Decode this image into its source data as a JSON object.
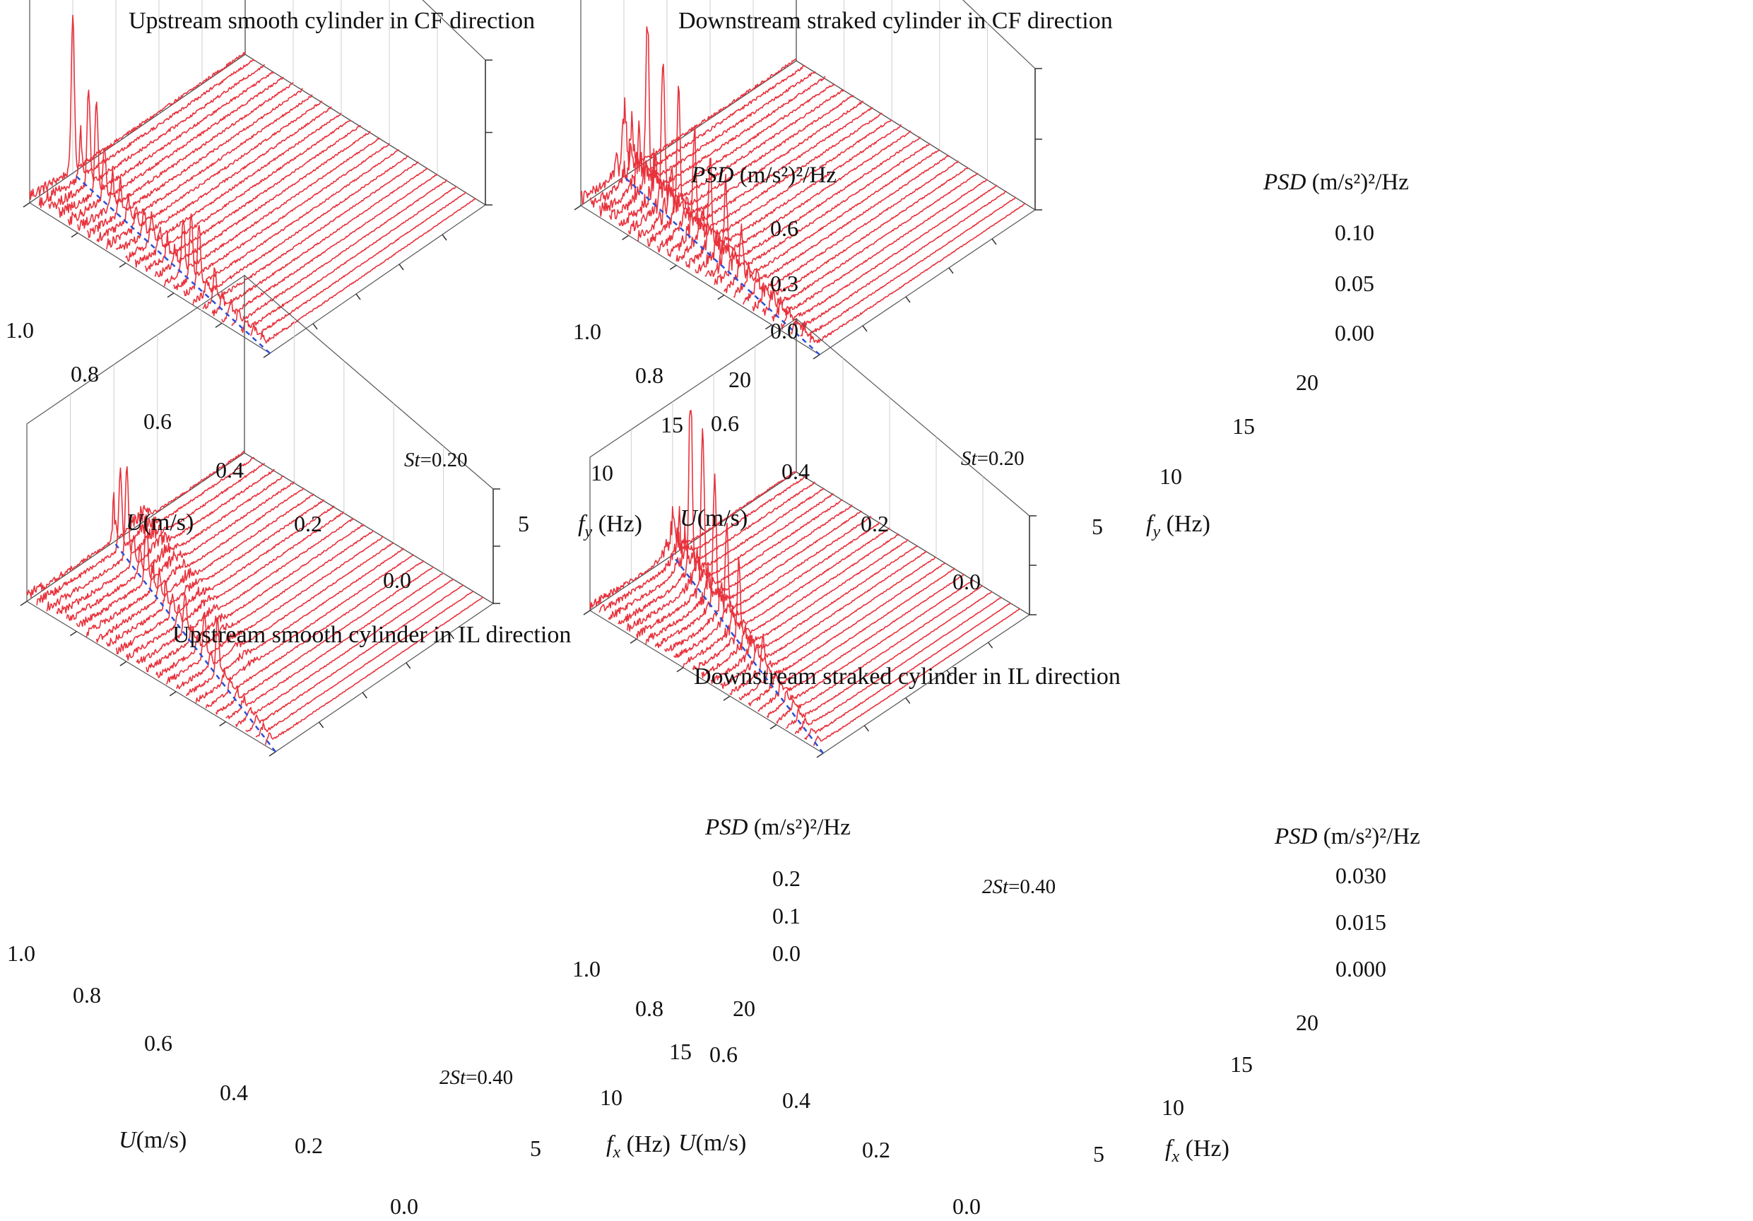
{
  "figure": {
    "panels": [
      {
        "title": "Upstream smooth cylinder in CF direction",
        "u_axis": {
          "label_var": "U",
          "label_unit": "(m/s)",
          "ticks": [
            "0.0",
            "0.2",
            "0.4",
            "0.6",
            "0.8",
            "1.0"
          ]
        },
        "f_axis": {
          "label_var": "f",
          "label_sub": "y",
          "label_unit": " (Hz)",
          "ticks": [
            "5",
            "10",
            "15",
            "20"
          ]
        },
        "z_axis": {
          "label_var": "PSD",
          "label_unit": " (m/s²)²/Hz",
          "ticks": [
            "0.0",
            "0.3",
            "0.6"
          ]
        },
        "annotation": {
          "var": "St",
          "text": "=0.20"
        }
      },
      {
        "title": "Downstream straked cylinder in CF direction",
        "u_axis": {
          "label_var": "U",
          "label_unit": "(m/s)",
          "ticks": [
            "0.0",
            "0.2",
            "0.4",
            "0.6",
            "0.8",
            "1.0"
          ]
        },
        "f_axis": {
          "label_var": "f",
          "label_sub": "y",
          "label_unit": " (Hz)",
          "ticks": [
            "5",
            "10",
            "15",
            "20"
          ]
        },
        "z_axis": {
          "label_var": "PSD",
          "label_unit": " (m/s²)²/Hz",
          "ticks": [
            "0.00",
            "0.05",
            "0.10"
          ]
        },
        "annotation": {
          "var": "St",
          "text": "=0.20"
        }
      },
      {
        "title": "Upstream smooth cylinder in IL direction",
        "u_axis": {
          "label_var": "U",
          "label_unit": "(m/s)",
          "ticks": [
            "0.0",
            "0.2",
            "0.4",
            "0.6",
            "0.8",
            "1.0"
          ]
        },
        "f_axis": {
          "label_var": "f",
          "label_sub": "x",
          "label_unit": " (Hz)",
          "ticks": [
            "5",
            "10",
            "15",
            "20"
          ]
        },
        "z_axis": {
          "label_var": "PSD",
          "label_unit": " (m/s²)²/Hz",
          "ticks": [
            "0.0",
            "0.1",
            "0.2"
          ]
        },
        "annotation": {
          "var": "2St",
          "text": "=0.40"
        }
      },
      {
        "title": "Downstream straked cylinder in IL direction",
        "u_axis": {
          "label_var": "U",
          "label_unit": "(m/s)",
          "ticks": [
            "0.0",
            "0.2",
            "0.4",
            "0.6",
            "0.8",
            "1.0"
          ]
        },
        "f_axis": {
          "label_var": "f",
          "label_sub": "x",
          "label_unit": " (Hz)",
          "ticks": [
            "5",
            "10",
            "15",
            "20"
          ]
        },
        "z_axis": {
          "label_var": "PSD",
          "label_unit": " (m/s²)²/Hz",
          "ticks": [
            "0.000",
            "0.015",
            "0.030"
          ]
        },
        "annotation": {
          "var": "2St",
          "text": "=0.40"
        }
      }
    ]
  },
  "chart_data": [
    {
      "type": "waterfall",
      "title": "Upstream smooth cylinder in CF direction",
      "xlabel": "fy (Hz)",
      "ylabel": "U(m/s)",
      "zlabel": "PSD (m/s²)²/Hz",
      "f_range": [
        0,
        25
      ],
      "u_range": [
        0,
        1.0
      ],
      "psd_range": [
        0,
        0.6
      ],
      "u_values": [
        0.04,
        0.08,
        0.12,
        0.16,
        0.2,
        0.24,
        0.28,
        0.32,
        0.36,
        0.4,
        0.44,
        0.48,
        0.52,
        0.56,
        0.6,
        0.64,
        0.68,
        0.72,
        0.76,
        0.8,
        0.84,
        0.88,
        0.92,
        0.96,
        1.0
      ],
      "peak_relation": {
        "name": "St=0.20",
        "slope_hz_per_ms": 5.0
      },
      "dominant_peaks": [
        {
          "u": 0.28,
          "f": 1.4,
          "psd": 0.13
        },
        {
          "u": 0.36,
          "f": 1.8,
          "psd": 0.26
        },
        {
          "u": 0.4,
          "f": 2.0,
          "psd": 0.28
        },
        {
          "u": 0.44,
          "f": 2.2,
          "psd": 0.22
        },
        {
          "u": 0.6,
          "f": 3.0,
          "psd": 0.12
        },
        {
          "u": 0.84,
          "f": 4.2,
          "psd": 0.22
        },
        {
          "u": 0.88,
          "f": 4.4,
          "psd": 0.38
        },
        {
          "u": 0.92,
          "f": 4.6,
          "psd": 0.4
        },
        {
          "u": 1.0,
          "f": 5.0,
          "psd": 0.65
        }
      ],
      "grid": true,
      "color": "#e8323c"
    },
    {
      "type": "waterfall",
      "title": "Downstream straked cylinder in CF direction",
      "xlabel": "fy (Hz)",
      "ylabel": "U(m/s)",
      "zlabel": "PSD (m/s²)²/Hz",
      "f_range": [
        0,
        25
      ],
      "u_range": [
        0,
        1.0
      ],
      "psd_range": [
        0,
        0.1
      ],
      "u_values": [
        0.04,
        0.08,
        0.12,
        0.16,
        0.2,
        0.24,
        0.28,
        0.32,
        0.36,
        0.4,
        0.44,
        0.48,
        0.52,
        0.56,
        0.6,
        0.64,
        0.68,
        0.72,
        0.76,
        0.8,
        0.84,
        0.88,
        0.92,
        0.96,
        1.0
      ],
      "peak_relation": {
        "name": "St=0.20",
        "slope_hz_per_ms": 5.0
      },
      "dominant_peaks": [
        {
          "u": 0.4,
          "f": 2.0,
          "psd": 0.03
        },
        {
          "u": 0.48,
          "f": 2.4,
          "psd": 0.055
        },
        {
          "u": 0.56,
          "f": 2.8,
          "psd": 0.06
        },
        {
          "u": 0.64,
          "f": 3.2,
          "psd": 0.07
        },
        {
          "u": 0.72,
          "f": 3.6,
          "psd": 0.09
        },
        {
          "u": 0.8,
          "f": 4.0,
          "psd": 0.095
        },
        {
          "u": 0.88,
          "f": 4.4,
          "psd": 0.115
        }
      ],
      "grid": true,
      "color": "#e8323c"
    },
    {
      "type": "waterfall",
      "title": "Upstream smooth cylinder in IL direction",
      "xlabel": "fx (Hz)",
      "ylabel": "U(m/s)",
      "zlabel": "PSD (m/s²)²/Hz",
      "f_range": [
        0,
        25
      ],
      "u_range": [
        0,
        1.0
      ],
      "psd_range": [
        0,
        0.2
      ],
      "u_values": [
        0.04,
        0.08,
        0.12,
        0.16,
        0.2,
        0.24,
        0.28,
        0.32,
        0.36,
        0.4,
        0.44,
        0.48,
        0.52,
        0.56,
        0.6,
        0.64,
        0.68,
        0.72,
        0.76,
        0.8,
        0.84,
        0.88,
        0.92,
        0.96,
        1.0
      ],
      "peak_relation": {
        "name": "2St=0.40",
        "slope_hz_per_ms": 10.0
      },
      "dominant_peaks": [
        {
          "u": 0.36,
          "f": 3.6,
          "psd": 0.1
        },
        {
          "u": 0.44,
          "f": 4.4,
          "psd": 0.08
        },
        {
          "u": 0.56,
          "f": 5.6,
          "psd": 0.07
        },
        {
          "u": 0.8,
          "f": 8.0,
          "psd": 0.12
        },
        {
          "u": 0.92,
          "f": 9.2,
          "psd": 0.16
        },
        {
          "u": 0.96,
          "f": 9.6,
          "psd": 0.14
        }
      ],
      "grid": true,
      "color": "#e8323c"
    },
    {
      "type": "waterfall",
      "title": "Downstream straked cylinder in IL direction",
      "xlabel": "fx (Hz)",
      "ylabel": "U(m/s)",
      "zlabel": "PSD (m/s²)²/Hz",
      "f_range": [
        0,
        25
      ],
      "u_range": [
        0,
        1.0
      ],
      "psd_range": [
        0,
        0.03
      ],
      "u_values": [
        0.04,
        0.08,
        0.12,
        0.16,
        0.2,
        0.24,
        0.28,
        0.32,
        0.36,
        0.4,
        0.44,
        0.48,
        0.52,
        0.56,
        0.6,
        0.64,
        0.68,
        0.72,
        0.76,
        0.8,
        0.84,
        0.88,
        0.92,
        0.96,
        1.0
      ],
      "peak_relation": {
        "name": "2St=0.40",
        "slope_hz_per_ms": 10.0
      },
      "dominant_peaks": [
        {
          "u": 0.4,
          "f": 2.2,
          "psd": 0.01
        },
        {
          "u": 0.56,
          "f": 2.4,
          "psd": 0.022
        },
        {
          "u": 0.64,
          "f": 2.5,
          "psd": 0.03
        },
        {
          "u": 0.72,
          "f": 2.6,
          "psd": 0.04
        },
        {
          "u": 0.8,
          "f": 2.8,
          "psd": 0.05
        },
        {
          "u": 0.88,
          "f": 3.0,
          "psd": 0.062
        }
      ],
      "grid": true,
      "color": "#e8323c"
    }
  ]
}
